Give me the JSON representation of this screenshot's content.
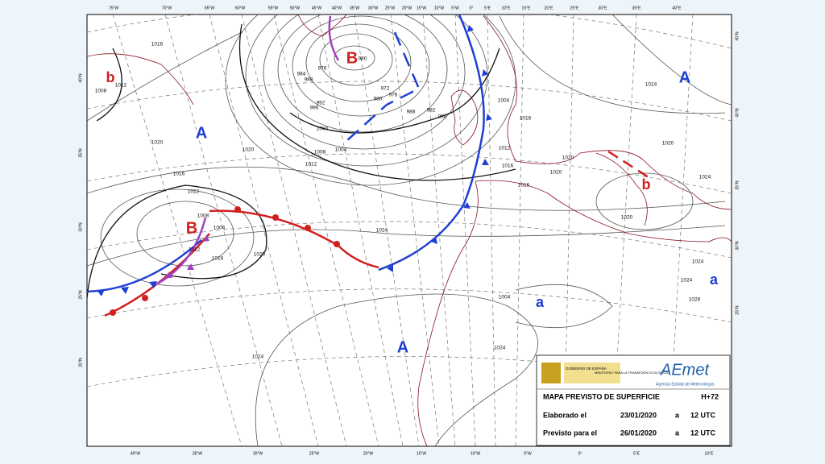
{
  "map": {
    "top_lon_labels": [
      "75°W",
      "70°W",
      "65°W",
      "60°W",
      "55°W",
      "50°W",
      "45°W",
      "40°W",
      "35°W",
      "30°W",
      "25°W",
      "20°W",
      "15°W",
      "10°W",
      "5°W",
      "0°",
      "5°E",
      "10°E",
      "15°E",
      "20°E",
      "25°E",
      "30°E",
      "35°E",
      "40°E"
    ],
    "bottom_lon_labels": [
      "40°W",
      "35°W",
      "30°W",
      "25°W",
      "20°W",
      "15°W",
      "10°W",
      "5°W",
      "0°",
      "5°E",
      "10°E"
    ],
    "left_lat_labels": [
      "40°N",
      "35°N",
      "30°N",
      "25°N",
      "20°N"
    ],
    "right_lat_labels": [
      "45°N",
      "40°N",
      "35°N",
      "30°N",
      "25°N"
    ],
    "pressure_centers": [
      "B",
      "B",
      "b",
      "b",
      "A",
      "A",
      "A",
      "a",
      "a"
    ],
    "isobar_labels": [
      "1016",
      "1012",
      "1008",
      "1020",
      "1020",
      "1016",
      "1012",
      "1012",
      "1008",
      "1004",
      "1000",
      "996",
      "992",
      "988",
      "984",
      "976",
      "980",
      "972",
      "976",
      "980",
      "988",
      "992",
      "998",
      "1004",
      "1016",
      "1012",
      "1016",
      "1020",
      "1020",
      "1016",
      "1020",
      "1024",
      "1020",
      "1024",
      "1024",
      "1024",
      "1024",
      "1020",
      "1016",
      "1012",
      "1008",
      "1004",
      "1004",
      "1028",
      "1024",
      "1024"
    ]
  },
  "legend": {
    "gov": "GOBIERNO DE ESPAÑA",
    "ministry": "MINISTERIO PARA LA TRANSICIÓN ECOLÓGICA",
    "logo": "AEmet",
    "agency": "Agencia Estatal de Meteorología",
    "title": "MAPA PREVISTO DE SUPERFICIE",
    "horizon": "H+72",
    "made_label": "Elaborado el",
    "made_date": "23/01/2020",
    "made_a": "a",
    "made_time": "12 UTC",
    "valid_label": "Previsto para el",
    "valid_date": "26/01/2020",
    "valid_a": "a",
    "valid_time": "12 UTC"
  }
}
